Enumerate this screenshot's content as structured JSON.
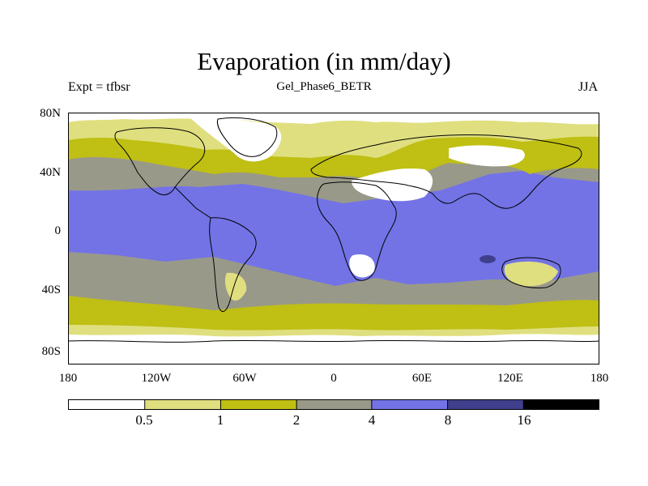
{
  "title": "Evaporation (in mm/day)",
  "subtitle": "Gel_Phase6_BETR",
  "left_string": "Expt = tfbsr",
  "right_string": "JJA",
  "lat_labels": [
    "80N",
    "40N",
    "0",
    "40S",
    "80S"
  ],
  "lon_labels": [
    "180",
    "120W",
    "60W",
    "0",
    "60E",
    "120E",
    "180"
  ],
  "colorbar": {
    "labels": [
      "0.5",
      "1",
      "2",
      "4",
      "8",
      "16"
    ],
    "colors": [
      "#ffffff",
      "#e0df7f",
      "#bfbf14",
      "#99998a",
      "#7373e6",
      "#3f3f8c",
      "#000000"
    ]
  },
  "colors": {
    "land_outline": "#000000",
    "ocean_base": "#99998a",
    "tropical": "#7373e6",
    "very_high": "#3f3f8c",
    "low": "#bfbf14",
    "lower": "#e0df7f",
    "lowest": "#ffffff"
  }
}
